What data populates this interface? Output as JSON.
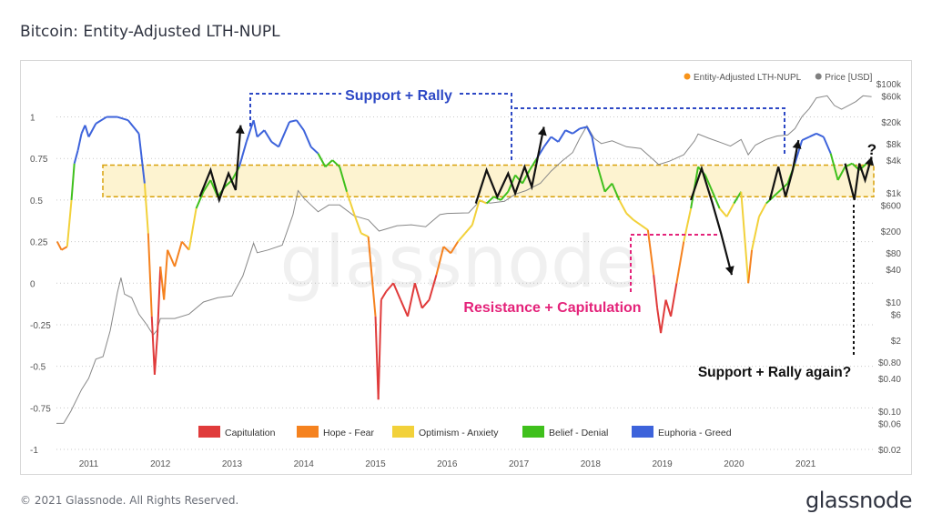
{
  "page": {
    "title": "Bitcoin: Entity-Adjusted LTH-NUPL",
    "footer": "© 2021 Glassnode. All Rights Reserved.",
    "logo": "glassnode",
    "watermark": "glassnode"
  },
  "chart_data": {
    "type": "line",
    "title": "Bitcoin: Entity-Adjusted LTH-NUPL",
    "x_ticks": [
      "2011",
      "2012",
      "2013",
      "2014",
      "2015",
      "2016",
      "2017",
      "2018",
      "2019",
      "2020",
      "2021"
    ],
    "x_range": [
      2010.55,
      2021.95
    ],
    "y_left": {
      "range": [
        -1,
        1.2
      ],
      "ticks": [
        1,
        0.75,
        0.5,
        0.25,
        0,
        -0.25,
        -0.5,
        -0.75,
        -1
      ],
      "tick_labels": [
        "1",
        "0.75",
        "0.5",
        "0.25",
        "0",
        "-0.25",
        "-0.5",
        "-0.75",
        "-1"
      ]
    },
    "y_right": {
      "scale": "log",
      "range": [
        0.02,
        100000
      ],
      "ticks": [
        100000,
        60000,
        20000,
        8000,
        4000,
        1000,
        600,
        200,
        80,
        40,
        10,
        6,
        2,
        0.8,
        0.4,
        0.1,
        0.06,
        0.02
      ],
      "tick_labels": [
        "$100k",
        "$60k",
        "$20k",
        "$8k",
        "$4k",
        "$1k",
        "$600",
        "$200",
        "$80",
        "$40",
        "$10",
        "$6",
        "$2",
        "$0.80",
        "$0.40",
        "$0.10",
        "$0.06",
        "$0.02"
      ]
    },
    "legend_top": [
      {
        "name": "Entity-Adjusted LTH-NUPL",
        "color": "#f7931a"
      },
      {
        "name": "Price [USD]",
        "color": "#808080"
      }
    ],
    "zones": [
      {
        "name": "Capitulation",
        "color": "#e03b3b",
        "below": 0
      },
      {
        "name": "Hope - Fear",
        "color": "#f5821f",
        "below": 0.25
      },
      {
        "name": "Optimism - Anxiety",
        "color": "#f2d13a",
        "below": 0.5
      },
      {
        "name": "Belief - Denial",
        "color": "#3fc01c",
        "below": 0.75
      },
      {
        "name": "Euphoria - Greed",
        "color": "#3d63db",
        "below": 2
      }
    ],
    "band": {
      "y": [
        0.52,
        0.71
      ],
      "fill": "#fdf3d0",
      "stroke": "#d8a10b"
    },
    "series": [
      {
        "name": "Entity-Adjusted LTH-NUPL",
        "axis": "left",
        "values": [
          [
            2010.56,
            0.25
          ],
          [
            2010.62,
            0.2
          ],
          [
            2010.7,
            0.22
          ],
          [
            2010.76,
            0.5
          ],
          [
            2010.8,
            0.72
          ],
          [
            2010.85,
            0.8
          ],
          [
            2010.9,
            0.9
          ],
          [
            2010.95,
            0.95
          ],
          [
            2011.0,
            0.88
          ],
          [
            2011.1,
            0.96
          ],
          [
            2011.25,
            1.0
          ],
          [
            2011.4,
            1.0
          ],
          [
            2011.55,
            0.98
          ],
          [
            2011.7,
            0.9
          ],
          [
            2011.78,
            0.6
          ],
          [
            2011.83,
            0.3
          ],
          [
            2011.88,
            -0.2
          ],
          [
            2011.92,
            -0.55
          ],
          [
            2011.96,
            -0.3
          ],
          [
            2012.0,
            0.1
          ],
          [
            2012.05,
            -0.1
          ],
          [
            2012.1,
            0.2
          ],
          [
            2012.2,
            0.1
          ],
          [
            2012.3,
            0.25
          ],
          [
            2012.4,
            0.2
          ],
          [
            2012.5,
            0.45
          ],
          [
            2012.6,
            0.55
          ],
          [
            2012.7,
            0.62
          ],
          [
            2012.8,
            0.52
          ],
          [
            2012.9,
            0.58
          ],
          [
            2013.0,
            0.62
          ],
          [
            2013.1,
            0.7
          ],
          [
            2013.2,
            0.85
          ],
          [
            2013.3,
            0.98
          ],
          [
            2013.35,
            0.88
          ],
          [
            2013.45,
            0.92
          ],
          [
            2013.55,
            0.85
          ],
          [
            2013.65,
            0.82
          ],
          [
            2013.8,
            0.97
          ],
          [
            2013.9,
            0.98
          ],
          [
            2014.0,
            0.92
          ],
          [
            2014.1,
            0.82
          ],
          [
            2014.2,
            0.78
          ],
          [
            2014.3,
            0.7
          ],
          [
            2014.4,
            0.74
          ],
          [
            2014.5,
            0.7
          ],
          [
            2014.6,
            0.55
          ],
          [
            2014.7,
            0.42
          ],
          [
            2014.8,
            0.3
          ],
          [
            2014.9,
            0.28
          ],
          [
            2015.0,
            -0.2
          ],
          [
            2015.04,
            -0.7
          ],
          [
            2015.08,
            -0.1
          ],
          [
            2015.15,
            -0.05
          ],
          [
            2015.25,
            0.0
          ],
          [
            2015.35,
            -0.1
          ],
          [
            2015.45,
            -0.2
          ],
          [
            2015.55,
            0.0
          ],
          [
            2015.65,
            -0.15
          ],
          [
            2015.75,
            -0.1
          ],
          [
            2015.85,
            0.05
          ],
          [
            2015.95,
            0.22
          ],
          [
            2016.05,
            0.18
          ],
          [
            2016.15,
            0.25
          ],
          [
            2016.25,
            0.3
          ],
          [
            2016.35,
            0.35
          ],
          [
            2016.45,
            0.5
          ],
          [
            2016.55,
            0.48
          ],
          [
            2016.65,
            0.52
          ],
          [
            2016.75,
            0.5
          ],
          [
            2016.85,
            0.55
          ],
          [
            2016.95,
            0.65
          ],
          [
            2017.05,
            0.6
          ],
          [
            2017.15,
            0.68
          ],
          [
            2017.25,
            0.75
          ],
          [
            2017.35,
            0.82
          ],
          [
            2017.45,
            0.88
          ],
          [
            2017.55,
            0.85
          ],
          [
            2017.65,
            0.92
          ],
          [
            2017.75,
            0.9
          ],
          [
            2017.85,
            0.93
          ],
          [
            2017.95,
            0.94
          ],
          [
            2018.02,
            0.88
          ],
          [
            2018.1,
            0.7
          ],
          [
            2018.2,
            0.55
          ],
          [
            2018.3,
            0.6
          ],
          [
            2018.4,
            0.5
          ],
          [
            2018.5,
            0.42
          ],
          [
            2018.6,
            0.38
          ],
          [
            2018.7,
            0.35
          ],
          [
            2018.8,
            0.32
          ],
          [
            2018.88,
            0.05
          ],
          [
            2018.93,
            -0.15
          ],
          [
            2018.98,
            -0.3
          ],
          [
            2019.05,
            -0.1
          ],
          [
            2019.12,
            -0.2
          ],
          [
            2019.2,
            0.0
          ],
          [
            2019.3,
            0.25
          ],
          [
            2019.4,
            0.45
          ],
          [
            2019.5,
            0.7
          ],
          [
            2019.6,
            0.65
          ],
          [
            2019.7,
            0.55
          ],
          [
            2019.8,
            0.45
          ],
          [
            2019.9,
            0.4
          ],
          [
            2020.0,
            0.48
          ],
          [
            2020.1,
            0.55
          ],
          [
            2020.2,
            0.0
          ],
          [
            2020.25,
            0.2
          ],
          [
            2020.35,
            0.4
          ],
          [
            2020.45,
            0.48
          ],
          [
            2020.55,
            0.52
          ],
          [
            2020.65,
            0.56
          ],
          [
            2020.75,
            0.6
          ],
          [
            2020.85,
            0.72
          ],
          [
            2020.95,
            0.86
          ],
          [
            2021.05,
            0.88
          ],
          [
            2021.15,
            0.9
          ],
          [
            2021.25,
            0.88
          ],
          [
            2021.35,
            0.78
          ],
          [
            2021.45,
            0.62
          ],
          [
            2021.55,
            0.7
          ],
          [
            2021.65,
            0.72
          ],
          [
            2021.75,
            0.68
          ],
          [
            2021.85,
            0.72
          ],
          [
            2021.92,
            0.75
          ]
        ]
      },
      {
        "name": "Price [USD]",
        "axis": "right",
        "color": "#888888",
        "values": [
          [
            2010.55,
            0.06
          ],
          [
            2010.65,
            0.06
          ],
          [
            2010.75,
            0.1
          ],
          [
            2010.9,
            0.25
          ],
          [
            2011.0,
            0.4
          ],
          [
            2011.1,
            0.9
          ],
          [
            2011.2,
            1.0
          ],
          [
            2011.3,
            3
          ],
          [
            2011.4,
            15
          ],
          [
            2011.45,
            28
          ],
          [
            2011.5,
            14
          ],
          [
            2011.6,
            12
          ],
          [
            2011.7,
            6
          ],
          [
            2011.8,
            4
          ],
          [
            2011.9,
            2.5
          ],
          [
            2011.95,
            3
          ],
          [
            2012.0,
            5
          ],
          [
            2012.2,
            5
          ],
          [
            2012.4,
            6
          ],
          [
            2012.6,
            10
          ],
          [
            2012.8,
            12
          ],
          [
            2013.0,
            13
          ],
          [
            2013.15,
            30
          ],
          [
            2013.3,
            120
          ],
          [
            2013.35,
            80
          ],
          [
            2013.5,
            90
          ],
          [
            2013.7,
            110
          ],
          [
            2013.85,
            400
          ],
          [
            2013.92,
            1100
          ],
          [
            2014.0,
            800
          ],
          [
            2014.1,
            600
          ],
          [
            2014.2,
            450
          ],
          [
            2014.35,
            600
          ],
          [
            2014.5,
            600
          ],
          [
            2014.7,
            380
          ],
          [
            2014.9,
            320
          ],
          [
            2015.05,
            200
          ],
          [
            2015.3,
            250
          ],
          [
            2015.5,
            260
          ],
          [
            2015.7,
            240
          ],
          [
            2015.9,
            400
          ],
          [
            2016.0,
            420
          ],
          [
            2016.3,
            430
          ],
          [
            2016.45,
            700
          ],
          [
            2016.6,
            650
          ],
          [
            2016.8,
            700
          ],
          [
            2016.95,
            950
          ],
          [
            2017.1,
            1100
          ],
          [
            2017.3,
            1500
          ],
          [
            2017.45,
            2500
          ],
          [
            2017.6,
            3800
          ],
          [
            2017.75,
            5500
          ],
          [
            2017.85,
            10000
          ],
          [
            2017.95,
            17000
          ],
          [
            2018.05,
            10000
          ],
          [
            2018.15,
            8000
          ],
          [
            2018.3,
            9000
          ],
          [
            2018.5,
            7000
          ],
          [
            2018.7,
            6500
          ],
          [
            2018.88,
            4000
          ],
          [
            2018.95,
            3300
          ],
          [
            2019.1,
            3800
          ],
          [
            2019.3,
            5000
          ],
          [
            2019.45,
            9000
          ],
          [
            2019.5,
            12000
          ],
          [
            2019.65,
            10000
          ],
          [
            2019.8,
            8500
          ],
          [
            2019.95,
            7200
          ],
          [
            2020.1,
            9500
          ],
          [
            2020.2,
            5000
          ],
          [
            2020.3,
            7500
          ],
          [
            2020.45,
            9500
          ],
          [
            2020.6,
            11000
          ],
          [
            2020.75,
            11500
          ],
          [
            2020.85,
            15000
          ],
          [
            2020.95,
            25000
          ],
          [
            2021.05,
            35000
          ],
          [
            2021.15,
            55000
          ],
          [
            2021.3,
            60000
          ],
          [
            2021.4,
            40000
          ],
          [
            2021.5,
            34000
          ],
          [
            2021.6,
            40000
          ],
          [
            2021.7,
            47000
          ],
          [
            2021.8,
            60000
          ],
          [
            2021.92,
            58000
          ]
        ]
      }
    ],
    "arrows": [
      {
        "points": [
          [
            2012.55,
            0.52
          ],
          [
            2012.7,
            0.68
          ],
          [
            2012.82,
            0.5
          ],
          [
            2012.95,
            0.66
          ],
          [
            2013.05,
            0.56
          ],
          [
            2013.12,
            0.95
          ]
        ]
      },
      {
        "points": [
          [
            2016.4,
            0.48
          ],
          [
            2016.55,
            0.68
          ],
          [
            2016.7,
            0.52
          ],
          [
            2016.85,
            0.66
          ],
          [
            2016.95,
            0.54
          ],
          [
            2017.08,
            0.7
          ],
          [
            2017.18,
            0.58
          ],
          [
            2017.35,
            0.94
          ]
        ]
      },
      {
        "points": [
          [
            2019.4,
            0.5
          ],
          [
            2019.55,
            0.69
          ],
          [
            2019.7,
            0.48
          ],
          [
            2019.82,
            0.3
          ],
          [
            2019.97,
            0.05
          ]
        ]
      },
      {
        "points": [
          [
            2020.5,
            0.5
          ],
          [
            2020.62,
            0.7
          ],
          [
            2020.72,
            0.52
          ],
          [
            2020.82,
            0.68
          ],
          [
            2020.9,
            0.86
          ]
        ]
      },
      {
        "points": [
          [
            2021.55,
            0.72
          ],
          [
            2021.68,
            0.5
          ],
          [
            2021.75,
            0.72
          ],
          [
            2021.83,
            0.62
          ],
          [
            2021.92,
            0.76
          ]
        ]
      }
    ],
    "annotations": [
      {
        "text": "Support + Rally",
        "color": "#2d48c5",
        "x": 2014.55,
        "y": 1.15
      },
      {
        "text": "Resistance + Capitulation",
        "color": "#e4237a",
        "x": 2017.6,
        "y": -0.07
      },
      {
        "text": "Support + Rally again?",
        "color": "#111111",
        "x": 2020.95,
        "y": -0.53
      },
      {
        "text": "?",
        "color": "#111111",
        "x": 2021.85,
        "y": 0.84
      }
    ]
  }
}
